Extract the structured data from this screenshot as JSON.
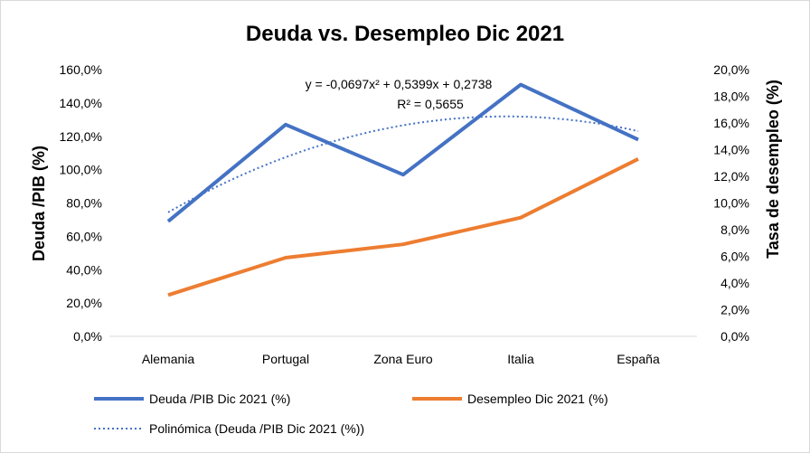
{
  "chart_data": {
    "type": "line",
    "title": "Deuda vs. Desempleo Dic 2021",
    "categories": [
      "Alemania",
      "Portugal",
      "Zona Euro",
      "Italia",
      "España"
    ],
    "y_left": {
      "label": "Deuda /PIB (%)",
      "range": [
        0,
        1.6
      ],
      "ticks": [
        "0,0%",
        "20,0%",
        "40,0%",
        "60,0%",
        "80,0%",
        "100,0%",
        "120,0%",
        "140,0%",
        "160,0%"
      ]
    },
    "y_right": {
      "label": "Tasa de desempleo (%)",
      "range": [
        0,
        0.2
      ],
      "ticks": [
        "0,0%",
        "2,0%",
        "4,0%",
        "6,0%",
        "8,0%",
        "10,0%",
        "12,0%",
        "14,0%",
        "16,0%",
        "18,0%",
        "20,0%"
      ]
    },
    "series": [
      {
        "name": "Deuda /PIB Dic 2021 (%)",
        "axis": "left",
        "color": "#4472C4",
        "values": [
          0.69,
          1.27,
          0.97,
          1.51,
          1.18
        ]
      },
      {
        "name": "Desempleo Dic 2021 (%)",
        "axis": "right",
        "color": "#ED7D31",
        "values": [
          0.031,
          0.059,
          0.069,
          0.089,
          0.133
        ]
      }
    ],
    "trendline": {
      "name": "Polinómica (Deuda /PIB Dic 2021 (%))",
      "color": "#4472C4",
      "style": "dotted",
      "coefficients": [
        -0.0697,
        0.5399,
        0.2738
      ],
      "equation": "y = -0,0697x² + 0,5399x + 0,2738",
      "r2": "R² = 0,5655"
    },
    "grid": false,
    "legend_position": "bottom"
  }
}
